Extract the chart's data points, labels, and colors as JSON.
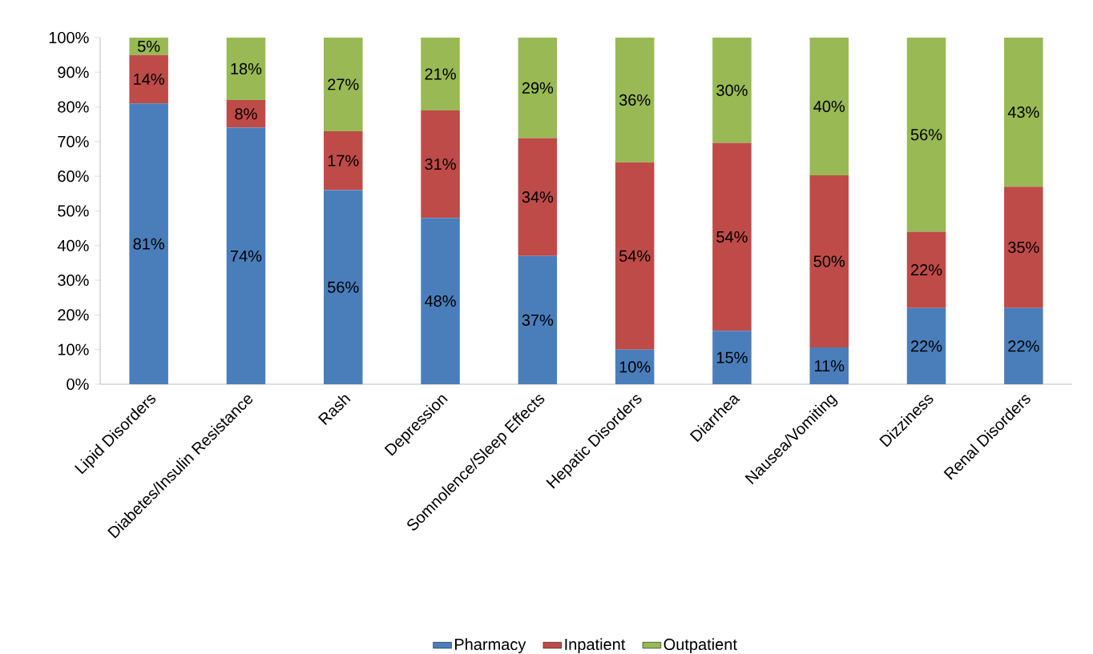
{
  "chart_data": {
    "type": "bar",
    "stacked": true,
    "categories": [
      "Lipid Disorders",
      "Diabetes/Insulin Resistance",
      "Rash",
      "Depression",
      "Somnolence/Sleep Effects",
      "Hepatic Disorders",
      "Diarrhea",
      "Nausea/Vomiting",
      "Dizziness",
      "Renal Disorders"
    ],
    "series": [
      {
        "name": "Pharmacy",
        "color": "#4a7ebb",
        "values": [
          81,
          74,
          56,
          48,
          37,
          10,
          15.4,
          10.6,
          22,
          22
        ],
        "value_labels": [
          "81%",
          "74%",
          "56%",
          "48%",
          "37%",
          "10%",
          "15%",
          "11%",
          "22%",
          "22%"
        ]
      },
      {
        "name": "Inpatient",
        "color": "#be4b48",
        "values": [
          14,
          8,
          17,
          31,
          34,
          54,
          54.2,
          49.7,
          22,
          35
        ],
        "value_labels": [
          "14%",
          "8%",
          "17%",
          "31%",
          "34%",
          "54%",
          "54%",
          "50%",
          "22%",
          "35%"
        ]
      },
      {
        "name": "Outpatient",
        "color": "#98b954",
        "values": [
          5,
          18,
          27,
          21,
          29,
          36,
          30.4,
          39.7,
          56,
          43
        ],
        "value_labels": [
          "5%",
          "18%",
          "27%",
          "21%",
          "29%",
          "36%",
          "30%",
          "40%",
          "56%",
          "43%"
        ]
      }
    ],
    "ylim": [
      0,
      100
    ],
    "yticks": [
      {
        "value": 0,
        "label": "0%"
      },
      {
        "value": 10,
        "label": "10%"
      },
      {
        "value": 20,
        "label": "20%"
      },
      {
        "value": 30,
        "label": "30%"
      },
      {
        "value": 40,
        "label": "40%"
      },
      {
        "value": 50,
        "label": "50%"
      },
      {
        "value": 60,
        "label": "60%"
      },
      {
        "value": 70,
        "label": "70%"
      },
      {
        "value": 80,
        "label": "80%"
      },
      {
        "value": 90,
        "label": "90%"
      },
      {
        "value": 100,
        "label": "100%"
      }
    ],
    "legend": "bottom"
  }
}
